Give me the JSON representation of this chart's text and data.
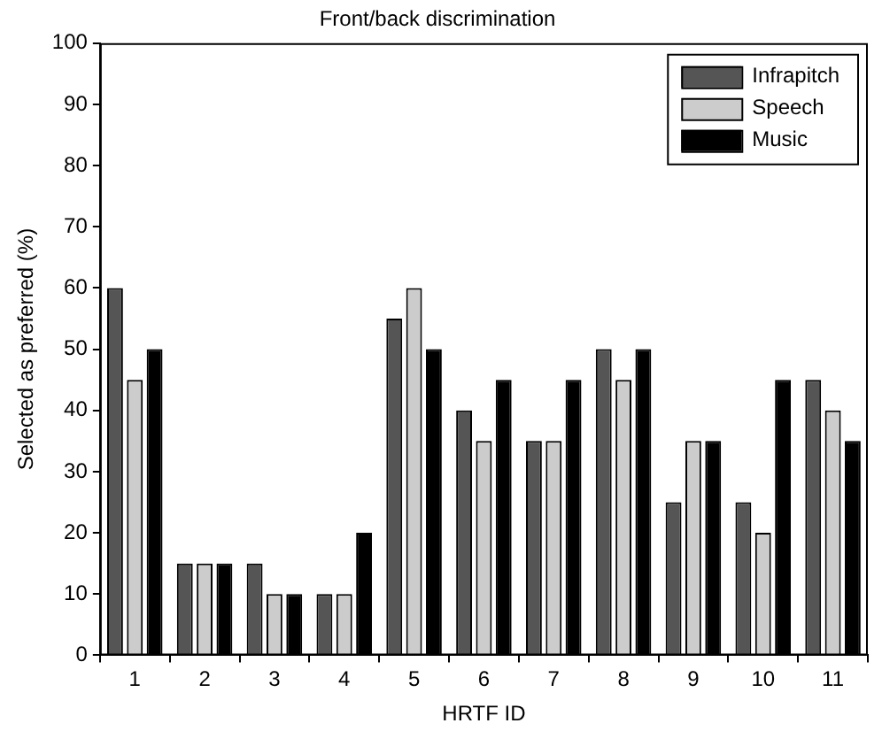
{
  "chart_data": {
    "type": "bar",
    "title": "Front/back discrimination",
    "xlabel": "HRTF ID",
    "ylabel": "Selected as preferred (%)",
    "categories": [
      "1",
      "2",
      "3",
      "4",
      "5",
      "6",
      "7",
      "8",
      "9",
      "10",
      "11"
    ],
    "series": [
      {
        "name": "Infrapitch",
        "color": "#555555",
        "values": [
          60,
          15,
          15,
          10,
          55,
          40,
          35,
          50,
          25,
          25,
          45
        ]
      },
      {
        "name": "Speech",
        "color": "#cccccc",
        "values": [
          45,
          15,
          10,
          10,
          60,
          35,
          35,
          45,
          35,
          20,
          40
        ]
      },
      {
        "name": "Music",
        "color": "#000000",
        "values": [
          50,
          15,
          10,
          20,
          50,
          45,
          45,
          50,
          35,
          45,
          35
        ]
      }
    ],
    "ylim": [
      0,
      100
    ],
    "yticks": [
      0,
      10,
      20,
      30,
      40,
      50,
      60,
      70,
      80,
      90,
      100
    ],
    "grid": false,
    "legend": "top right"
  }
}
